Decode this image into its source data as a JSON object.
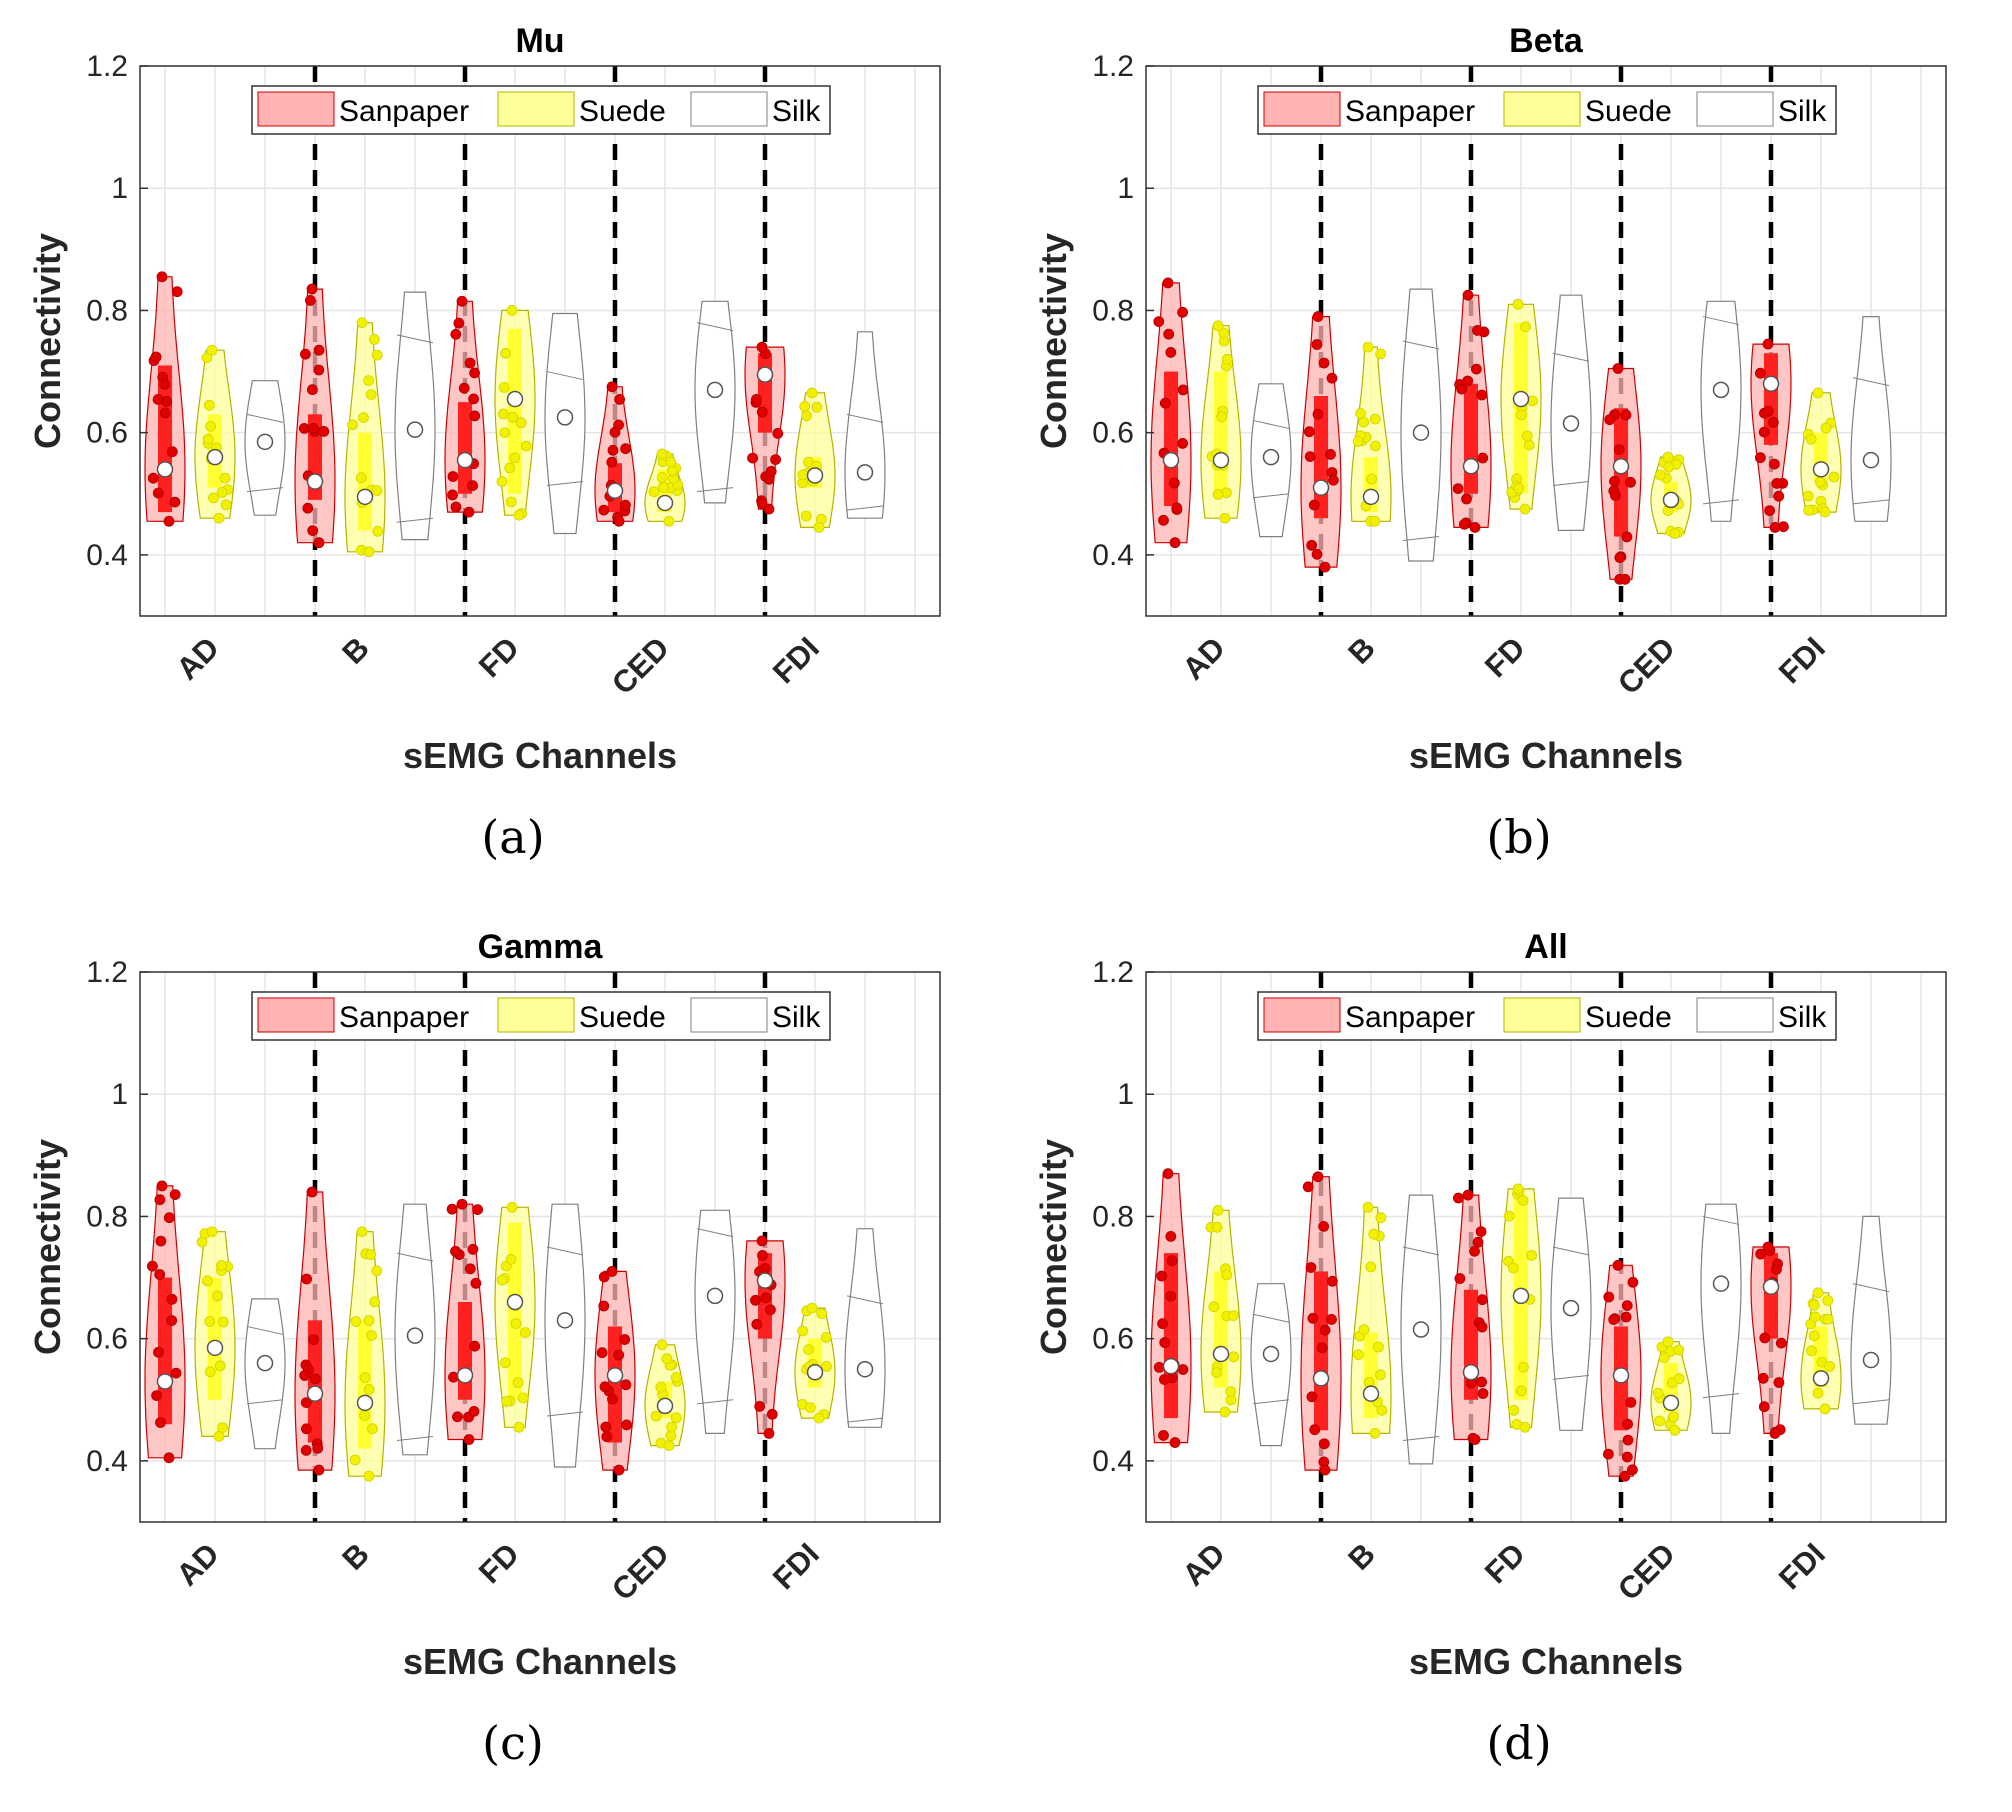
{
  "figure": {
    "legend_labels": [
      "Sanpaper",
      "Suede",
      "Silk"
    ],
    "colors": {
      "sanpaper": "#ff2020",
      "sanpaper_light": "#ffb3b3",
      "suede": "#ffff33",
      "suede_light": "#ffff99",
      "silk": "#ffffff",
      "outline": "#808080",
      "grid": "#e6e6e6"
    }
  },
  "chart_data": [
    {
      "type": "violin",
      "caption": "(a)",
      "title": "Mu",
      "xlabel": "sEMG Channels",
      "ylabel": "Connectivity",
      "ylim": [
        0.3,
        1.2
      ],
      "yticks": [
        0.4,
        0.6,
        0.8,
        1,
        1.2
      ],
      "ytick_labels": [
        "0.4",
        "0.6",
        "0.8",
        "1",
        "1.2"
      ],
      "categories": [
        "AD",
        "B",
        "FD",
        "CED",
        "FDI"
      ],
      "series": [
        {
          "name": "Sanpaper",
          "medians": [
            0.54,
            0.52,
            0.555,
            0.505,
            0.695
          ],
          "mins": [
            0.455,
            0.42,
            0.47,
            0.455,
            0.475
          ],
          "maxs": [
            0.855,
            0.835,
            0.815,
            0.675,
            0.74
          ],
          "q1": [
            0.47,
            0.49,
            0.5,
            0.47,
            0.6
          ],
          "q3": [
            0.71,
            0.63,
            0.65,
            0.55,
            0.73
          ]
        },
        {
          "name": "Suede",
          "medians": [
            0.56,
            0.495,
            0.655,
            0.485,
            0.53
          ],
          "mins": [
            0.46,
            0.405,
            0.465,
            0.455,
            0.445
          ],
          "maxs": [
            0.735,
            0.78,
            0.8,
            0.565,
            0.665
          ],
          "q1": [
            0.51,
            0.44,
            0.5,
            0.47,
            0.51
          ],
          "q3": [
            0.63,
            0.6,
            0.77,
            0.54,
            0.56
          ]
        },
        {
          "name": "Silk",
          "medians": [
            0.585,
            0.605,
            0.625,
            0.67,
            0.535
          ],
          "mins": [
            0.465,
            0.425,
            0.435,
            0.485,
            0.46
          ],
          "maxs": [
            0.685,
            0.83,
            0.795,
            0.815,
            0.765
          ],
          "q1": [
            0.51,
            0.46,
            0.52,
            0.51,
            0.48
          ],
          "q3": [
            0.63,
            0.76,
            0.7,
            0.78,
            0.63
          ]
        }
      ]
    },
    {
      "type": "violin",
      "caption": "(b)",
      "title": "Beta",
      "xlabel": "sEMG Channels",
      "ylabel": "Connectivity",
      "ylim": [
        0.3,
        1.2
      ],
      "yticks": [
        0.4,
        0.6,
        0.8,
        1,
        1.2
      ],
      "ytick_labels": [
        "0.4",
        "0.6",
        "0.8",
        "1",
        "1.2"
      ],
      "categories": [
        "AD",
        "B",
        "FD",
        "CED",
        "FDI"
      ],
      "series": [
        {
          "name": "Sanpaper",
          "medians": [
            0.555,
            0.51,
            0.545,
            0.545,
            0.68
          ],
          "mins": [
            0.42,
            0.38,
            0.445,
            0.36,
            0.445
          ],
          "maxs": [
            0.845,
            0.79,
            0.825,
            0.705,
            0.745
          ],
          "q1": [
            0.48,
            0.46,
            0.5,
            0.43,
            0.58
          ],
          "q3": [
            0.7,
            0.66,
            0.68,
            0.64,
            0.73
          ]
        },
        {
          "name": "Suede",
          "medians": [
            0.555,
            0.495,
            0.655,
            0.49,
            0.54
          ],
          "mins": [
            0.46,
            0.455,
            0.475,
            0.435,
            0.47
          ],
          "maxs": [
            0.775,
            0.74,
            0.81,
            0.56,
            0.665
          ],
          "q1": [
            0.5,
            0.47,
            0.5,
            0.47,
            0.52
          ],
          "q3": [
            0.7,
            0.56,
            0.78,
            0.52,
            0.6
          ]
        },
        {
          "name": "Silk",
          "medians": [
            0.56,
            0.6,
            0.615,
            0.67,
            0.555
          ],
          "mins": [
            0.43,
            0.39,
            0.44,
            0.455,
            0.455
          ],
          "maxs": [
            0.68,
            0.835,
            0.825,
            0.815,
            0.79
          ],
          "q1": [
            0.5,
            0.43,
            0.52,
            0.49,
            0.49
          ],
          "q3": [
            0.62,
            0.75,
            0.73,
            0.79,
            0.69
          ]
        }
      ]
    },
    {
      "type": "violin",
      "caption": "(c)",
      "title": "Gamma",
      "xlabel": "sEMG Channels",
      "ylabel": "Connectivity",
      "ylim": [
        0.3,
        1.2
      ],
      "yticks": [
        0.4,
        0.6,
        0.8,
        1,
        1.2
      ],
      "ytick_labels": [
        "0.4",
        "0.6",
        "0.8",
        "1",
        "1.2"
      ],
      "categories": [
        "AD",
        "B",
        "FD",
        "CED",
        "FDI"
      ],
      "series": [
        {
          "name": "Sanpaper",
          "medians": [
            0.53,
            0.51,
            0.54,
            0.54,
            0.695
          ],
          "mins": [
            0.405,
            0.385,
            0.435,
            0.385,
            0.445
          ],
          "maxs": [
            0.85,
            0.84,
            0.82,
            0.71,
            0.76
          ],
          "q1": [
            0.46,
            0.43,
            0.5,
            0.43,
            0.6
          ],
          "q3": [
            0.7,
            0.63,
            0.66,
            0.62,
            0.74
          ]
        },
        {
          "name": "Suede",
          "medians": [
            0.585,
            0.495,
            0.66,
            0.49,
            0.545
          ],
          "mins": [
            0.44,
            0.375,
            0.455,
            0.425,
            0.47
          ],
          "maxs": [
            0.775,
            0.775,
            0.815,
            0.59,
            0.65
          ],
          "q1": [
            0.5,
            0.42,
            0.5,
            0.47,
            0.52
          ],
          "q3": [
            0.7,
            0.63,
            0.79,
            0.53,
            0.6
          ]
        },
        {
          "name": "Silk",
          "medians": [
            0.56,
            0.605,
            0.63,
            0.67,
            0.55
          ],
          "mins": [
            0.42,
            0.41,
            0.39,
            0.445,
            0.455
          ],
          "maxs": [
            0.665,
            0.82,
            0.82,
            0.81,
            0.78
          ],
          "q1": [
            0.5,
            0.44,
            0.48,
            0.5,
            0.47
          ],
          "q3": [
            0.62,
            0.74,
            0.75,
            0.78,
            0.67
          ]
        }
      ]
    },
    {
      "type": "violin",
      "caption": "(d)",
      "title": "All",
      "xlabel": "sEMG Channels",
      "ylabel": "Connectivity",
      "ylim": [
        0.3,
        1.2
      ],
      "yticks": [
        0.4,
        0.6,
        0.8,
        1,
        1.2
      ],
      "ytick_labels": [
        "0.4",
        "0.6",
        "0.8",
        "1",
        "1.2"
      ],
      "categories": [
        "AD",
        "B",
        "FD",
        "CED",
        "FDI"
      ],
      "series": [
        {
          "name": "Sanpaper",
          "medians": [
            0.555,
            0.535,
            0.545,
            0.54,
            0.685
          ],
          "mins": [
            0.43,
            0.385,
            0.435,
            0.375,
            0.445
          ],
          "maxs": [
            0.87,
            0.865,
            0.835,
            0.72,
            0.75
          ],
          "q1": [
            0.47,
            0.45,
            0.5,
            0.45,
            0.6
          ],
          "q3": [
            0.74,
            0.71,
            0.68,
            0.62,
            0.74
          ]
        },
        {
          "name": "Suede",
          "medians": [
            0.575,
            0.51,
            0.67,
            0.495,
            0.535
          ],
          "mins": [
            0.48,
            0.445,
            0.455,
            0.45,
            0.485
          ],
          "maxs": [
            0.81,
            0.815,
            0.845,
            0.595,
            0.675
          ],
          "q1": [
            0.52,
            0.47,
            0.5,
            0.48,
            0.52
          ],
          "q3": [
            0.71,
            0.61,
            0.83,
            0.56,
            0.62
          ]
        },
        {
          "name": "Silk",
          "medians": [
            0.575,
            0.615,
            0.65,
            0.69,
            0.565
          ],
          "mins": [
            0.425,
            0.395,
            0.45,
            0.445,
            0.46
          ],
          "maxs": [
            0.69,
            0.835,
            0.83,
            0.82,
            0.8
          ],
          "q1": [
            0.5,
            0.44,
            0.54,
            0.51,
            0.5
          ],
          "q3": [
            0.64,
            0.75,
            0.75,
            0.8,
            0.69
          ]
        }
      ]
    }
  ]
}
